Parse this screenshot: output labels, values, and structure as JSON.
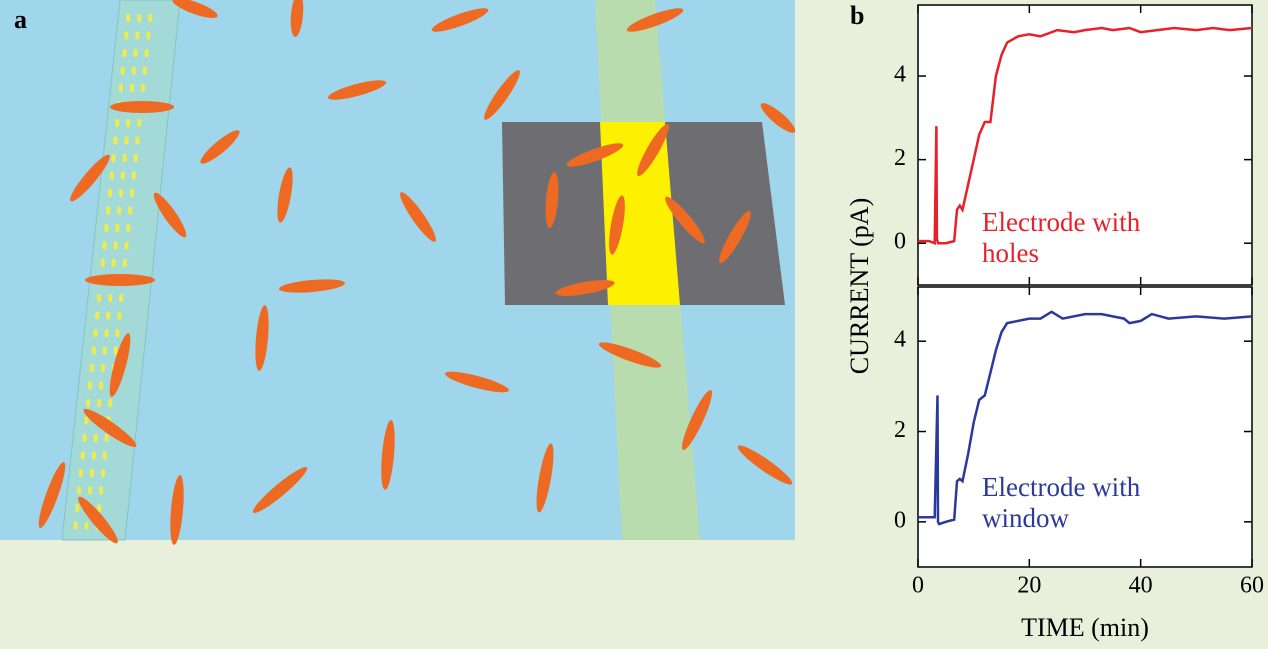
{
  "panel_a": {
    "label": "a"
  },
  "panel_b": {
    "label": "b"
  },
  "chart_data": [
    {
      "type": "line",
      "ylabel": "CURRENT (pA)",
      "annotation": [
        "Electrode with",
        "holes"
      ],
      "series": [
        {
          "color": "#e8202a",
          "x": [
            0,
            2,
            3,
            3.3,
            3.4,
            3.6,
            5,
            6.5,
            7,
            7.5,
            8,
            9,
            10,
            11,
            12,
            13,
            14,
            15,
            16,
            18,
            20,
            22,
            25,
            28,
            30,
            33,
            35,
            38,
            40,
            43,
            46,
            50,
            53,
            56,
            60
          ],
          "values": [
            0.05,
            0.05,
            0.0,
            2.8,
            0.1,
            0.0,
            0.0,
            0.05,
            0.8,
            0.9,
            0.8,
            1.4,
            2.0,
            2.6,
            2.9,
            2.9,
            4.0,
            4.5,
            4.8,
            4.95,
            5.0,
            4.95,
            5.1,
            5.05,
            5.1,
            5.15,
            5.1,
            5.15,
            5.05,
            5.1,
            5.15,
            5.1,
            5.15,
            5.1,
            5.15
          ]
        }
      ],
      "xlim": [
        0,
        60
      ],
      "ylim": [
        -1,
        5.7
      ],
      "yticks": [
        0,
        2,
        4
      ]
    },
    {
      "type": "line",
      "xlabel": "TIME (min)",
      "annotation": [
        "Electrode with",
        "window"
      ],
      "series": [
        {
          "color": "#2a3a9c",
          "x": [
            0,
            2,
            3,
            3.5,
            3.6,
            3.8,
            5,
            6.5,
            7,
            7.5,
            8,
            9,
            10,
            11,
            12,
            13,
            14,
            15,
            16,
            18,
            20,
            22,
            24,
            26,
            30,
            33,
            35,
            37,
            38,
            40,
            42,
            45,
            50,
            55,
            60
          ],
          "values": [
            0.1,
            0.1,
            0.1,
            2.8,
            0.0,
            -0.05,
            0.0,
            0.05,
            0.9,
            0.95,
            0.9,
            1.5,
            2.2,
            2.7,
            2.8,
            3.3,
            3.8,
            4.2,
            4.4,
            4.45,
            4.5,
            4.5,
            4.65,
            4.5,
            4.6,
            4.6,
            4.55,
            4.5,
            4.4,
            4.45,
            4.6,
            4.5,
            4.55,
            4.5,
            4.55
          ]
        }
      ],
      "xlim": [
        0,
        60
      ],
      "ylim": [
        -1,
        5.2
      ],
      "yticks": [
        0,
        2,
        4
      ],
      "xticks": [
        0,
        20,
        40,
        60
      ]
    }
  ]
}
